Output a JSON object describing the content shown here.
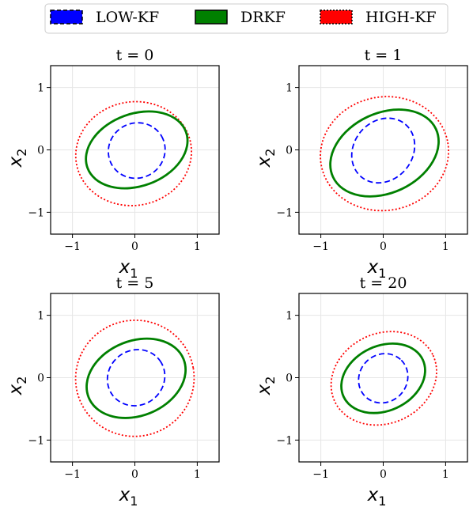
{
  "legend": {
    "entries": [
      {
        "label": "LOW-KF",
        "color": "#0000ff",
        "style": "dashed"
      },
      {
        "label": "DRKF",
        "color": "#008000",
        "style": "solid"
      },
      {
        "label": "HIGH-KF",
        "color": "#ff0000",
        "style": "dotted"
      }
    ]
  },
  "chart_data": [
    {
      "type": "line",
      "title": "t = 0",
      "xlabel": "x",
      "xlabel_sub": "1",
      "ylabel": "x",
      "ylabel_sub": "2",
      "xlim": [
        -1.35,
        1.35
      ],
      "ylim": [
        -1.35,
        1.35
      ],
      "ticks": [
        -1,
        0,
        1
      ],
      "tick_labels": [
        "−1",
        "0",
        "1"
      ],
      "grid": true,
      "ellipses": [
        {
          "name": "LOW-KF",
          "cx": 0.03,
          "cy": -0.01,
          "rx": 0.46,
          "ry": 0.44,
          "angle": 30
        },
        {
          "name": "DRKF",
          "cx": 0.03,
          "cy": 0.0,
          "rx": 0.84,
          "ry": 0.58,
          "angle": 20
        },
        {
          "name": "HIGH-KF",
          "cx": -0.02,
          "cy": -0.06,
          "rx": 0.93,
          "ry": 0.83,
          "angle": 10
        }
      ]
    },
    {
      "type": "line",
      "title": "t = 1",
      "xlabel": "x",
      "xlabel_sub": "1",
      "ylabel": "x",
      "ylabel_sub": "2",
      "xlim": [
        -1.35,
        1.35
      ],
      "ylim": [
        -1.35,
        1.35
      ],
      "ticks": [
        -1,
        0,
        1
      ],
      "tick_labels": [
        "−1",
        "0",
        "1"
      ],
      "grid": true,
      "ellipses": [
        {
          "name": "LOW-KF",
          "cx": 0.0,
          "cy": -0.01,
          "rx": 0.55,
          "ry": 0.47,
          "angle": 50
        },
        {
          "name": "DRKF",
          "cx": 0.02,
          "cy": -0.05,
          "rx": 0.91,
          "ry": 0.64,
          "angle": 25
        },
        {
          "name": "HIGH-KF",
          "cx": 0.02,
          "cy": -0.06,
          "rx": 1.03,
          "ry": 0.91,
          "angle": 10
        }
      ]
    },
    {
      "type": "line",
      "title": "t = 5",
      "xlabel": "x",
      "xlabel_sub": "1",
      "ylabel": "x",
      "ylabel_sub": "2",
      "xlim": [
        -1.35,
        1.35
      ],
      "ylim": [
        -1.35,
        1.35
      ],
      "ticks": [
        -1,
        0,
        1
      ],
      "tick_labels": [
        "−1",
        "0",
        "1"
      ],
      "grid": true,
      "ellipses": [
        {
          "name": "LOW-KF",
          "cx": 0.02,
          "cy": 0.0,
          "rx": 0.47,
          "ry": 0.44,
          "angle": 35
        },
        {
          "name": "DRKF",
          "cx": 0.02,
          "cy": -0.01,
          "rx": 0.82,
          "ry": 0.6,
          "angle": 22
        },
        {
          "name": "HIGH-KF",
          "cx": 0.0,
          "cy": -0.01,
          "rx": 0.95,
          "ry": 0.93,
          "angle": 10
        }
      ]
    },
    {
      "type": "line",
      "title": "t = 20",
      "xlabel": "x",
      "xlabel_sub": "1",
      "ylabel": "x",
      "ylabel_sub": "2",
      "xlim": [
        -1.35,
        1.35
      ],
      "ylim": [
        -1.35,
        1.35
      ],
      "ticks": [
        -1,
        0,
        1
      ],
      "tick_labels": [
        "−1",
        "0",
        "1"
      ],
      "grid": true,
      "ellipses": [
        {
          "name": "LOW-KF",
          "cx": 0.0,
          "cy": -0.01,
          "rx": 0.41,
          "ry": 0.38,
          "angle": 45
        },
        {
          "name": "DRKF",
          "cx": 0.0,
          "cy": -0.01,
          "rx": 0.7,
          "ry": 0.52,
          "angle": 25
        },
        {
          "name": "HIGH-KF",
          "cx": 0.01,
          "cy": -0.01,
          "rx": 0.87,
          "ry": 0.72,
          "angle": 25
        }
      ]
    }
  ]
}
